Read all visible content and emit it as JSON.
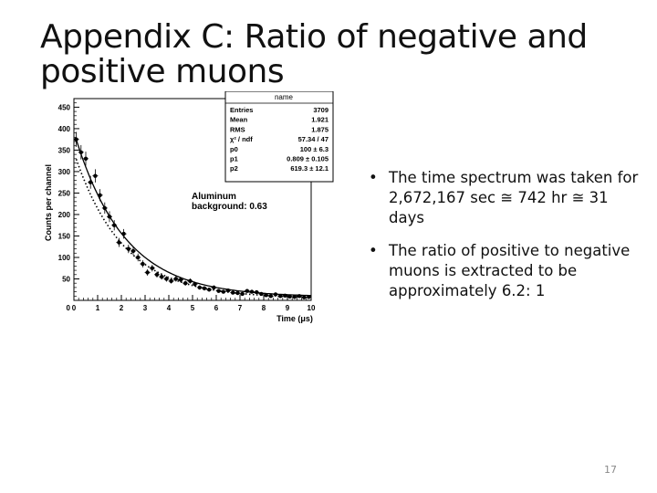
{
  "slide": {
    "title_line1": "Appendix C: Ratio of negative and",
    "title_line2": "positive muons",
    "page_number": "17"
  },
  "bullets": [
    {
      "text": "The time spectrum was taken for 2,672,167 sec ≅ 742 hr ≅ 31 days"
    },
    {
      "text": "The ratio of positive to negative muons is extracted to be approximately 6.2: 1"
    }
  ],
  "chart_data": {
    "type": "scatter",
    "title": "",
    "xlabel": "Time (μs)",
    "ylabel": "Counts per channel",
    "xlim": [
      0,
      10
    ],
    "ylim": [
      0,
      470
    ],
    "x_ticks": [
      "0",
      "1",
      "2",
      "3",
      "4",
      "5",
      "6",
      "7",
      "8",
      "9",
      "10"
    ],
    "y_ticks": [
      "50",
      "100",
      "150",
      "200",
      "250",
      "300",
      "350",
      "400",
      "450"
    ],
    "stats_box": {
      "name": "name",
      "rows": [
        {
          "label": "Entries",
          "value": "3709"
        },
        {
          "label": "Mean",
          "value": "1.921"
        },
        {
          "label": "RMS",
          "value": "1.875"
        },
        {
          "label": "χ² / ndf",
          "value": "57.34 / 47"
        },
        {
          "label": "p0",
          "value": "100 ± 6.3"
        },
        {
          "label": "p1",
          "value": "0.809 ± 0.105"
        },
        {
          "label": "p2",
          "value": "619.3 ± 12.1"
        }
      ]
    },
    "annotation_line1": "Aluminum",
    "annotation_line2": "background: 0.63",
    "series": [
      {
        "x": [
          0.1,
          0.3,
          0.5,
          0.7,
          0.9,
          1.1,
          1.3,
          1.5,
          1.7,
          1.9,
          2.1,
          2.3,
          2.5,
          2.7,
          2.9,
          3.1,
          3.3,
          3.5,
          3.7,
          3.9,
          4.1,
          4.3,
          4.5,
          4.7,
          4.9,
          5.1,
          5.3,
          5.5,
          5.7,
          5.9,
          6.1,
          6.3,
          6.5,
          6.7,
          6.9,
          7.1,
          7.3,
          7.5,
          7.7,
          7.9,
          8.1,
          8.3,
          8.5,
          8.7,
          8.9,
          9.1,
          9.3,
          9.5,
          9.7,
          9.9
        ],
        "y": [
          375,
          345,
          330,
          275,
          290,
          245,
          215,
          195,
          175,
          135,
          155,
          120,
          115,
          100,
          85,
          65,
          75,
          60,
          55,
          50,
          45,
          50,
          48,
          40,
          45,
          38,
          30,
          28,
          25,
          30,
          22,
          20,
          23,
          18,
          17,
          15,
          22,
          20,
          19,
          15,
          12,
          10,
          14,
          10,
          11,
          9,
          8,
          10,
          7,
          8
        ]
      }
    ],
    "fit_curves": [
      {
        "style": "solid",
        "p0": 100,
        "p1": 0.809,
        "p2": 619.3
      },
      {
        "style": "dotted"
      }
    ]
  }
}
